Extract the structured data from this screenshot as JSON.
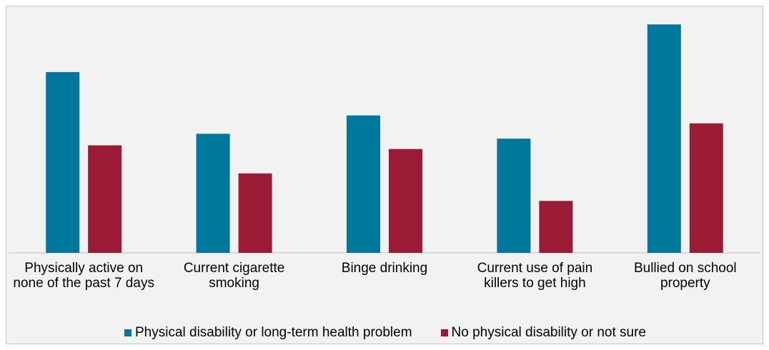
{
  "chart_data": {
    "type": "bar",
    "categories": [
      "Physically active on none of the past 7 days",
      "Current cigarette smoking",
      "Binge drinking",
      "Current use of pain killers to get high",
      "Bullied on school property"
    ],
    "series": [
      {
        "name": "Physical disability or long-term health problem",
        "color": "#00789c",
        "values": [
          29.6,
          19.5,
          22.5,
          18.7,
          37.4
        ]
      },
      {
        "name": "No physical disability or not sure",
        "color": "#9b1a35",
        "values": [
          17.6,
          13.0,
          17.0,
          8.5,
          21.2
        ]
      }
    ],
    "ylim": [
      0,
      40
    ],
    "grid": false,
    "legend_position": "bottom"
  }
}
